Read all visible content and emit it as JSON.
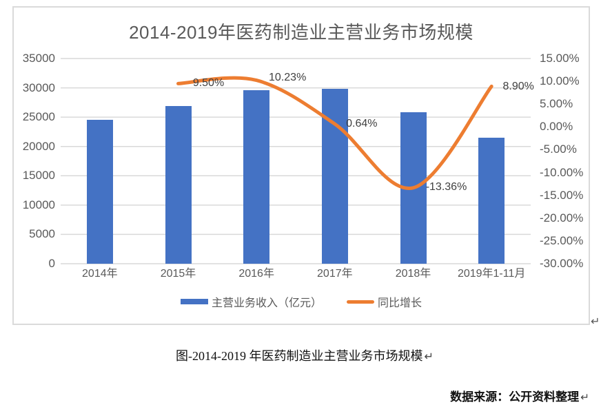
{
  "document": {
    "caption": "图-2014-2019 年医药制造业主营业务市场规模",
    "source": "数据来源：公开资料整理",
    "paragraph_mark": "↵"
  },
  "chart_data": {
    "type": "combo-bar-line",
    "title": "2014-2019年医药制造业主营业务市场规模",
    "categories": [
      "2014年",
      "2015年",
      "2016年",
      "2017年",
      "2018年",
      "2019年1-11月"
    ],
    "series": [
      {
        "name": "主营业务收入（亿元）",
        "type": "bar",
        "axis": "left",
        "color": "#4472C4",
        "values": [
          24500,
          26900,
          29600,
          29800,
          25800,
          21500
        ]
      },
      {
        "name": "同比增长",
        "type": "line",
        "axis": "right",
        "color": "#ED7D31",
        "smooth": true,
        "values": [
          null,
          9.5,
          10.23,
          0.64,
          -13.36,
          8.9
        ],
        "labels": [
          null,
          "9.50%",
          "10.23%",
          "0.64%",
          "-13.36%",
          "8.90%"
        ]
      }
    ],
    "y_left": {
      "min": 0,
      "max": 35000,
      "ticks_top_to_bottom": [
        "35000",
        "30000",
        "25000",
        "20000",
        "15000",
        "10000",
        "5000",
        "0"
      ]
    },
    "y_right": {
      "min": -30,
      "max": 15,
      "ticks_top_to_bottom": [
        "15.00%",
        "10.00%",
        "5.00%",
        "0.00%",
        "-5.00%",
        "-10.00%",
        "-15.00%",
        "-20.00%",
        "-25.00%",
        "-30.00%"
      ]
    },
    "grid": true,
    "legend_position": "bottom",
    "colors": {
      "bar": "#4472C4",
      "line": "#ED7D31",
      "gridline": "#D9D9D9",
      "axis_text": "#595959",
      "data_label_text": "#404040"
    }
  }
}
